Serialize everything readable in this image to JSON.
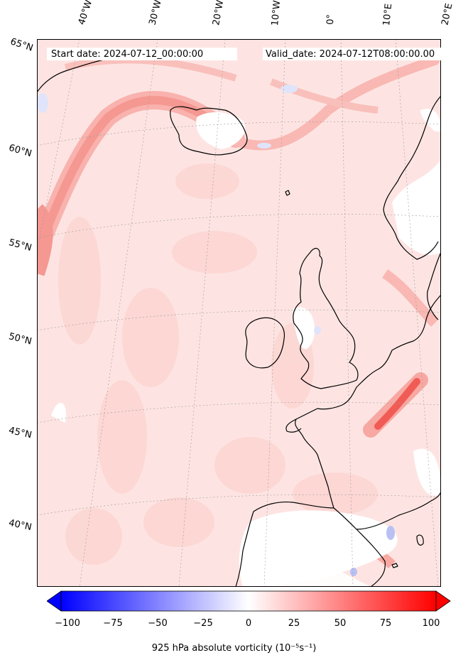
{
  "map": {
    "start_date": "Start date: 2024-07-12_00:00:00",
    "valid_date": "Valid_date: 2024-07-12T08:00:00.00",
    "lon_labels": [
      "40°W",
      "30°W",
      "20°W",
      "10°W",
      "0°",
      "10°E",
      "20°E"
    ],
    "lat_labels": [
      "65°N",
      "60°N",
      "55°N",
      "50°N",
      "45°N",
      "40°N"
    ]
  },
  "colorbar": {
    "label": "925 hPa absolute vorticity (10⁻⁵s⁻¹)",
    "ticks": [
      "−100",
      "−75",
      "−50",
      "−25",
      "0",
      "25",
      "50",
      "75",
      "100"
    ],
    "min": -100,
    "max": 100,
    "colormap": "bwr",
    "extend": "both"
  },
  "colors": {
    "positive_max": "#ff0000",
    "negative_max": "#0000ff",
    "zero": "#ffffff",
    "background_field": "#fde6e4",
    "coastline": "#000000"
  }
}
